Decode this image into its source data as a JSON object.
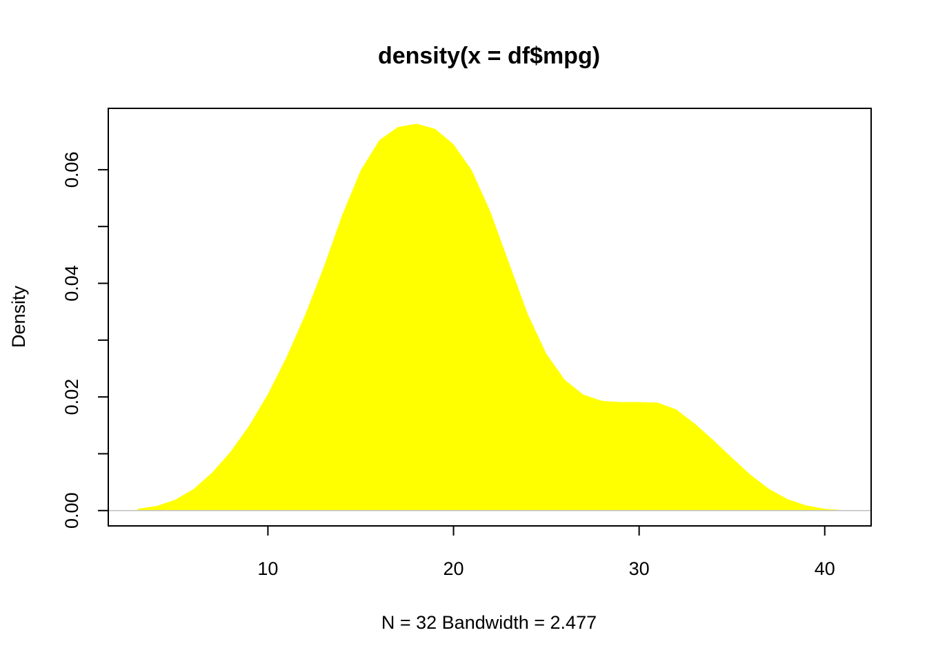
{
  "chart_data": {
    "type": "area",
    "title": "density(x = df$mpg)",
    "xlabel": "N = 32   Bandwidth = 2.477",
    "ylabel": "Density",
    "xlim": [
      1.4,
      42.5
    ],
    "ylim": [
      -0.0027,
      0.0708
    ],
    "x_ticks": [
      10,
      20,
      30,
      40
    ],
    "y_ticks": [
      0.0,
      0.01,
      0.02,
      0.03,
      0.04,
      0.05,
      0.06
    ],
    "x_tick_labels": [
      "10",
      "20",
      "30",
      "40"
    ],
    "y_tick_labels": [
      "0.00",
      "",
      "0.02",
      "",
      "0.04",
      "",
      "0.06"
    ],
    "grid": false,
    "fill_color": "#FFFF00",
    "baseline_color": "#BEBEBE",
    "series": [
      {
        "x": [
          2.97,
          4,
          5,
          6,
          7,
          8,
          9,
          10,
          11,
          12,
          13,
          14,
          15,
          16,
          17,
          18,
          19,
          20,
          21,
          22,
          23,
          24,
          25,
          26,
          27,
          28,
          29,
          30,
          31,
          32,
          33,
          34,
          35,
          36,
          37,
          38,
          39,
          40,
          40.83
        ],
        "y": [
          0.0003,
          0.0008,
          0.0019,
          0.0038,
          0.0067,
          0.0104,
          0.015,
          0.0205,
          0.027,
          0.0344,
          0.0428,
          0.052,
          0.0599,
          0.0652,
          0.0675,
          0.0681,
          0.0672,
          0.0645,
          0.0598,
          0.0525,
          0.0435,
          0.0346,
          0.0276,
          0.023,
          0.0204,
          0.0193,
          0.0191,
          0.0191,
          0.019,
          0.0178,
          0.0153,
          0.0124,
          0.0093,
          0.0063,
          0.0038,
          0.002,
          0.0009,
          0.0003,
          0.0001
        ]
      }
    ]
  }
}
